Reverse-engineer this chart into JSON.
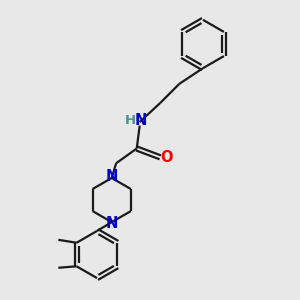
{
  "bg_color": "#e8e8e8",
  "bond_color": "#1a1a1a",
  "N_color": "#0000cc",
  "O_color": "#ff0000",
  "H_color": "#4a9090",
  "line_width": 1.6,
  "figsize": [
    3.0,
    3.0
  ],
  "dpi": 100,
  "xlim": [
    0,
    10
  ],
  "ylim": [
    0,
    10
  ]
}
